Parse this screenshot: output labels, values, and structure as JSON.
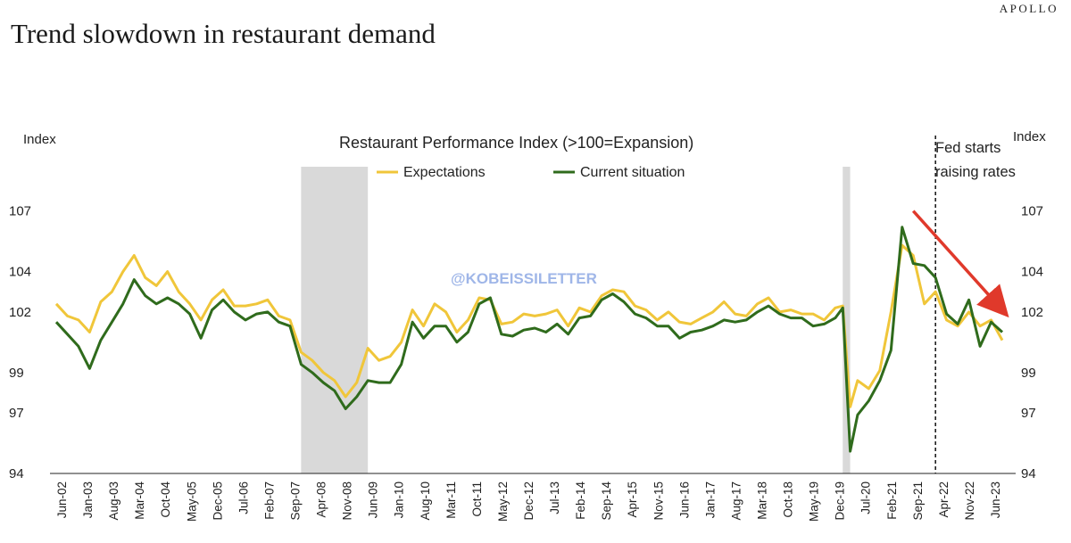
{
  "brand": "APOLLO",
  "page_title": "Trend slowdown in restaurant demand",
  "watermark": "@KOBEISSILETTER",
  "annotation": [
    "Fed starts",
    "raising rates"
  ],
  "colors": {
    "expectations": "#f0c63a",
    "current": "#2f6b1c",
    "recession": "#d9d9d9",
    "arrow": "#e0392b"
  },
  "chart_data": {
    "type": "line",
    "title": "Restaurant Performance Index (>100=Expansion)",
    "ylabel_left": "Index",
    "ylabel_right": "Index",
    "ylim": [
      94,
      108
    ],
    "yticks": [
      94,
      97,
      99,
      102,
      104,
      107
    ],
    "xlim": [
      "2002-06",
      "2023-09"
    ],
    "x_tick_labels": [
      "Jun-02",
      "Jan-03",
      "Aug-03",
      "Mar-04",
      "Oct-04",
      "May-05",
      "Dec-05",
      "Jul-06",
      "Feb-07",
      "Sep-07",
      "Apr-08",
      "Nov-08",
      "Jun-09",
      "Jan-10",
      "Aug-10",
      "Mar-11",
      "Oct-11",
      "May-12",
      "Dec-12",
      "Jul-13",
      "Feb-14",
      "Sep-14",
      "Apr-15",
      "Nov-15",
      "Jun-16",
      "Jan-17",
      "Aug-17",
      "Mar-18",
      "Oct-18",
      "May-19",
      "Dec-19",
      "Jul-20",
      "Feb-21",
      "Sep-21",
      "Apr-22",
      "Nov-22",
      "Jun-23"
    ],
    "legend_position": "top-center",
    "grid": false,
    "recession_shading": [
      [
        "2007-12",
        "2009-06"
      ],
      [
        "2020-02",
        "2020-04"
      ]
    ],
    "vline": "2022-03",
    "arrow": {
      "from": [
        "2021-09",
        107.0
      ],
      "to": [
        "2023-08",
        102.3
      ]
    },
    "series": [
      {
        "name": "Expectations",
        "points": [
          [
            "2002-06",
            102.4
          ],
          [
            "2002-09",
            101.8
          ],
          [
            "2002-12",
            101.6
          ],
          [
            "2003-03",
            101.0
          ],
          [
            "2003-06",
            102.5
          ],
          [
            "2003-09",
            103.0
          ],
          [
            "2003-12",
            104.0
          ],
          [
            "2004-03",
            104.8
          ],
          [
            "2004-06",
            103.7
          ],
          [
            "2004-09",
            103.3
          ],
          [
            "2004-12",
            104.0
          ],
          [
            "2005-03",
            103.0
          ],
          [
            "2005-06",
            102.4
          ],
          [
            "2005-09",
            101.6
          ],
          [
            "2005-12",
            102.6
          ],
          [
            "2006-03",
            103.1
          ],
          [
            "2006-06",
            102.3
          ],
          [
            "2006-09",
            102.3
          ],
          [
            "2006-12",
            102.4
          ],
          [
            "2007-03",
            102.6
          ],
          [
            "2007-06",
            101.8
          ],
          [
            "2007-09",
            101.6
          ],
          [
            "2007-12",
            100.0
          ],
          [
            "2008-03",
            99.6
          ],
          [
            "2008-06",
            99.0
          ],
          [
            "2008-09",
            98.6
          ],
          [
            "2008-12",
            97.8
          ],
          [
            "2009-03",
            98.5
          ],
          [
            "2009-06",
            100.2
          ],
          [
            "2009-09",
            99.6
          ],
          [
            "2009-12",
            99.8
          ],
          [
            "2010-03",
            100.5
          ],
          [
            "2010-06",
            102.1
          ],
          [
            "2010-09",
            101.3
          ],
          [
            "2010-12",
            102.4
          ],
          [
            "2011-03",
            102.0
          ],
          [
            "2011-06",
            101.0
          ],
          [
            "2011-09",
            101.6
          ],
          [
            "2011-12",
            102.7
          ],
          [
            "2012-03",
            102.6
          ],
          [
            "2012-06",
            101.4
          ],
          [
            "2012-09",
            101.5
          ],
          [
            "2012-12",
            101.9
          ],
          [
            "2013-03",
            101.8
          ],
          [
            "2013-06",
            101.9
          ],
          [
            "2013-09",
            102.1
          ],
          [
            "2013-12",
            101.3
          ],
          [
            "2014-03",
            102.2
          ],
          [
            "2014-06",
            102.0
          ],
          [
            "2014-09",
            102.8
          ],
          [
            "2014-12",
            103.1
          ],
          [
            "2015-03",
            103.0
          ],
          [
            "2015-06",
            102.3
          ],
          [
            "2015-09",
            102.1
          ],
          [
            "2015-12",
            101.6
          ],
          [
            "2016-03",
            102.0
          ],
          [
            "2016-06",
            101.5
          ],
          [
            "2016-09",
            101.4
          ],
          [
            "2016-12",
            101.7
          ],
          [
            "2017-03",
            102.0
          ],
          [
            "2017-06",
            102.5
          ],
          [
            "2017-09",
            101.9
          ],
          [
            "2017-12",
            101.8
          ],
          [
            "2018-03",
            102.4
          ],
          [
            "2018-06",
            102.7
          ],
          [
            "2018-09",
            102.0
          ],
          [
            "2018-12",
            102.1
          ],
          [
            "2019-03",
            101.9
          ],
          [
            "2019-06",
            101.9
          ],
          [
            "2019-09",
            101.6
          ],
          [
            "2019-12",
            102.2
          ],
          [
            "2020-02",
            102.3
          ],
          [
            "2020-04",
            97.3
          ],
          [
            "2020-06",
            98.6
          ],
          [
            "2020-09",
            98.2
          ],
          [
            "2020-12",
            99.1
          ],
          [
            "2021-03",
            102.0
          ],
          [
            "2021-06",
            105.3
          ],
          [
            "2021-09",
            104.8
          ],
          [
            "2021-12",
            102.4
          ],
          [
            "2022-03",
            103.0
          ],
          [
            "2022-06",
            101.6
          ],
          [
            "2022-09",
            101.3
          ],
          [
            "2022-12",
            102.0
          ],
          [
            "2023-03",
            101.3
          ],
          [
            "2023-06",
            101.6
          ],
          [
            "2023-09",
            100.6
          ]
        ]
      },
      {
        "name": "Current situation",
        "points": [
          [
            "2002-06",
            101.5
          ],
          [
            "2002-09",
            100.9
          ],
          [
            "2002-12",
            100.3
          ],
          [
            "2003-03",
            99.2
          ],
          [
            "2003-06",
            100.6
          ],
          [
            "2003-09",
            101.5
          ],
          [
            "2003-12",
            102.4
          ],
          [
            "2004-03",
            103.6
          ],
          [
            "2004-06",
            102.8
          ],
          [
            "2004-09",
            102.4
          ],
          [
            "2004-12",
            102.7
          ],
          [
            "2005-03",
            102.4
          ],
          [
            "2005-06",
            101.9
          ],
          [
            "2005-09",
            100.7
          ],
          [
            "2005-12",
            102.1
          ],
          [
            "2006-03",
            102.6
          ],
          [
            "2006-06",
            102.0
          ],
          [
            "2006-09",
            101.6
          ],
          [
            "2006-12",
            101.9
          ],
          [
            "2007-03",
            102.0
          ],
          [
            "2007-06",
            101.5
          ],
          [
            "2007-09",
            101.3
          ],
          [
            "2007-12",
            99.4
          ],
          [
            "2008-03",
            99.0
          ],
          [
            "2008-06",
            98.5
          ],
          [
            "2008-09",
            98.1
          ],
          [
            "2008-12",
            97.2
          ],
          [
            "2009-03",
            97.8
          ],
          [
            "2009-06",
            98.6
          ],
          [
            "2009-09",
            98.5
          ],
          [
            "2009-12",
            98.5
          ],
          [
            "2010-03",
            99.4
          ],
          [
            "2010-06",
            101.5
          ],
          [
            "2010-09",
            100.7
          ],
          [
            "2010-12",
            101.3
          ],
          [
            "2011-03",
            101.3
          ],
          [
            "2011-06",
            100.5
          ],
          [
            "2011-09",
            101.0
          ],
          [
            "2011-12",
            102.4
          ],
          [
            "2012-03",
            102.7
          ],
          [
            "2012-06",
            100.9
          ],
          [
            "2012-09",
            100.8
          ],
          [
            "2012-12",
            101.1
          ],
          [
            "2013-03",
            101.2
          ],
          [
            "2013-06",
            101.0
          ],
          [
            "2013-09",
            101.4
          ],
          [
            "2013-12",
            100.9
          ],
          [
            "2014-03",
            101.7
          ],
          [
            "2014-06",
            101.8
          ],
          [
            "2014-09",
            102.6
          ],
          [
            "2014-12",
            102.9
          ],
          [
            "2015-03",
            102.5
          ],
          [
            "2015-06",
            101.9
          ],
          [
            "2015-09",
            101.7
          ],
          [
            "2015-12",
            101.3
          ],
          [
            "2016-03",
            101.3
          ],
          [
            "2016-06",
            100.7
          ],
          [
            "2016-09",
            101.0
          ],
          [
            "2016-12",
            101.1
          ],
          [
            "2017-03",
            101.3
          ],
          [
            "2017-06",
            101.6
          ],
          [
            "2017-09",
            101.5
          ],
          [
            "2017-12",
            101.6
          ],
          [
            "2018-03",
            102.0
          ],
          [
            "2018-06",
            102.3
          ],
          [
            "2018-09",
            101.9
          ],
          [
            "2018-12",
            101.7
          ],
          [
            "2019-03",
            101.7
          ],
          [
            "2019-06",
            101.3
          ],
          [
            "2019-09",
            101.4
          ],
          [
            "2019-12",
            101.7
          ],
          [
            "2020-02",
            102.2
          ],
          [
            "2020-04",
            95.1
          ],
          [
            "2020-06",
            96.9
          ],
          [
            "2020-09",
            97.6
          ],
          [
            "2020-12",
            98.6
          ],
          [
            "2021-03",
            100.1
          ],
          [
            "2021-06",
            106.2
          ],
          [
            "2021-09",
            104.4
          ],
          [
            "2021-12",
            104.3
          ],
          [
            "2022-03",
            103.7
          ],
          [
            "2022-06",
            101.9
          ],
          [
            "2022-09",
            101.4
          ],
          [
            "2022-12",
            102.6
          ],
          [
            "2023-03",
            100.3
          ],
          [
            "2023-06",
            101.5
          ],
          [
            "2023-09",
            101.0
          ]
        ]
      }
    ]
  }
}
